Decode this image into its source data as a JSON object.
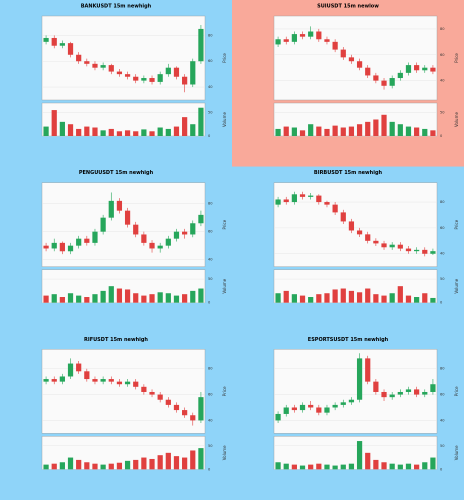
{
  "chart_data": [
    {
      "type": "candlestick",
      "title": "BANKUSDT 15m newhigh",
      "background": "#8fd4f9",
      "up_color": "#26a65b",
      "down_color": "#e0403f",
      "ylabel": "Price",
      "vlabel": "Volume",
      "open": [
        75,
        78,
        72,
        74,
        65,
        60,
        58,
        55,
        57,
        52,
        50,
        48,
        45,
        47,
        44,
        50,
        55,
        48,
        42,
        60
      ],
      "close": [
        78,
        72,
        74,
        65,
        60,
        58,
        55,
        57,
        52,
        50,
        48,
        45,
        47,
        44,
        50,
        55,
        48,
        42,
        60,
        85
      ],
      "high": [
        80,
        80,
        76,
        75,
        67,
        62,
        60,
        59,
        58,
        54,
        52,
        50,
        49,
        49,
        52,
        58,
        56,
        50,
        62,
        88
      ],
      "low": [
        73,
        70,
        70,
        63,
        58,
        56,
        53,
        53,
        50,
        48,
        46,
        43,
        43,
        42,
        42,
        48,
        46,
        36,
        40,
        58
      ],
      "volume": [
        20,
        55,
        30,
        25,
        15,
        20,
        18,
        12,
        15,
        10,
        12,
        10,
        14,
        10,
        18,
        15,
        20,
        40,
        25,
        60
      ],
      "ylim": [
        30,
        95
      ],
      "yticks": [
        40,
        60,
        80
      ],
      "vlim": [
        0,
        70
      ],
      "vticks": [
        0,
        50
      ]
    },
    {
      "type": "candlestick",
      "title": "SUIUSDT 15m newlow",
      "background": "#f9a99a",
      "up_color": "#26a65b",
      "down_color": "#e0403f",
      "ylabel": "Price",
      "vlabel": "Volume",
      "open": [
        68,
        72,
        70,
        76,
        74,
        78,
        72,
        70,
        64,
        58,
        55,
        50,
        44,
        40,
        36,
        42,
        46,
        52,
        48,
        50
      ],
      "close": [
        72,
        70,
        76,
        74,
        78,
        72,
        70,
        64,
        58,
        55,
        50,
        44,
        40,
        36,
        42,
        46,
        52,
        48,
        50,
        47
      ],
      "high": [
        74,
        74,
        78,
        78,
        82,
        80,
        74,
        72,
        66,
        60,
        57,
        52,
        46,
        42,
        44,
        48,
        54,
        54,
        52,
        52
      ],
      "low": [
        66,
        68,
        68,
        72,
        72,
        70,
        68,
        62,
        56,
        53,
        48,
        42,
        38,
        33,
        34,
        40,
        44,
        46,
        46,
        45
      ],
      "volume": [
        15,
        20,
        18,
        12,
        25,
        20,
        15,
        22,
        18,
        20,
        25,
        30,
        35,
        45,
        30,
        25,
        20,
        18,
        15,
        12
      ],
      "ylim": [
        25,
        90
      ],
      "yticks": [
        40,
        60,
        80
      ],
      "vlim": [
        0,
        70
      ],
      "vticks": [
        0,
        50
      ]
    },
    {
      "type": "candlestick",
      "title": "PENGUUSDT 15m newhigh",
      "background": "#8fd4f9",
      "up_color": "#26a65b",
      "down_color": "#e0403f",
      "ylabel": "Price",
      "vlabel": "Volume",
      "open": [
        50,
        48,
        52,
        46,
        50,
        55,
        52,
        60,
        70,
        82,
        75,
        65,
        58,
        52,
        48,
        50,
        55,
        60,
        58,
        66
      ],
      "close": [
        48,
        52,
        46,
        50,
        55,
        52,
        60,
        70,
        82,
        75,
        65,
        58,
        52,
        48,
        50,
        55,
        60,
        58,
        66,
        72
      ],
      "high": [
        52,
        55,
        53,
        52,
        57,
        57,
        62,
        72,
        88,
        84,
        77,
        67,
        60,
        54,
        52,
        57,
        62,
        62,
        68,
        75
      ],
      "low": [
        46,
        46,
        44,
        44,
        48,
        50,
        50,
        58,
        68,
        73,
        63,
        56,
        50,
        45,
        45,
        48,
        53,
        55,
        56,
        64
      ],
      "volume": [
        15,
        18,
        12,
        20,
        15,
        12,
        18,
        25,
        35,
        30,
        28,
        20,
        15,
        18,
        22,
        20,
        15,
        18,
        25,
        30
      ],
      "ylim": [
        35,
        95
      ],
      "yticks": [
        40,
        60,
        80
      ],
      "vlim": [
        0,
        70
      ],
      "vticks": [
        0,
        50
      ]
    },
    {
      "type": "candlestick",
      "title": "BIRBUSDT 15m newhigh",
      "background": "#8fd4f9",
      "up_color": "#26a65b",
      "down_color": "#e0403f",
      "ylabel": "Price",
      "vlabel": "Volume",
      "open": [
        78,
        82,
        80,
        86,
        84,
        85,
        80,
        78,
        72,
        65,
        58,
        55,
        50,
        48,
        45,
        47,
        44,
        42,
        43,
        40
      ],
      "close": [
        82,
        80,
        86,
        84,
        85,
        80,
        78,
        72,
        65,
        58,
        55,
        50,
        48,
        45,
        47,
        44,
        42,
        43,
        40,
        42
      ],
      "high": [
        84,
        84,
        88,
        88,
        87,
        86,
        81,
        80,
        74,
        67,
        60,
        57,
        52,
        50,
        49,
        49,
        46,
        45,
        45,
        44
      ],
      "low": [
        76,
        78,
        78,
        82,
        82,
        78,
        76,
        70,
        63,
        56,
        53,
        48,
        46,
        43,
        43,
        42,
        40,
        40,
        38,
        39
      ],
      "volume": [
        20,
        25,
        18,
        15,
        12,
        18,
        20,
        28,
        30,
        25,
        22,
        30,
        18,
        15,
        20,
        35,
        15,
        12,
        20,
        10
      ],
      "ylim": [
        30,
        95
      ],
      "yticks": [
        40,
        60,
        80
      ],
      "vlim": [
        0,
        70
      ],
      "vticks": [
        0,
        50
      ]
    },
    {
      "type": "candlestick",
      "title": "RIFUSDT 15m newhigh",
      "background": "#8fd4f9",
      "up_color": "#26a65b",
      "down_color": "#e0403f",
      "ylabel": "Price",
      "vlabel": "Volume",
      "open": [
        70,
        72,
        70,
        74,
        84,
        78,
        72,
        70,
        72,
        70,
        68,
        70,
        66,
        62,
        60,
        56,
        52,
        48,
        44,
        40
      ],
      "close": [
        72,
        70,
        74,
        84,
        78,
        72,
        70,
        72,
        70,
        68,
        70,
        66,
        62,
        60,
        56,
        52,
        48,
        44,
        40,
        58
      ],
      "high": [
        74,
        74,
        76,
        88,
        86,
        80,
        74,
        74,
        74,
        72,
        72,
        72,
        68,
        64,
        62,
        58,
        54,
        50,
        46,
        62
      ],
      "low": [
        68,
        68,
        68,
        72,
        76,
        70,
        68,
        68,
        68,
        66,
        66,
        64,
        60,
        58,
        54,
        50,
        46,
        42,
        36,
        38
      ],
      "volume": [
        10,
        12,
        15,
        25,
        20,
        15,
        12,
        10,
        12,
        14,
        18,
        20,
        25,
        22,
        30,
        35,
        28,
        25,
        40,
        45
      ],
      "ylim": [
        30,
        95
      ],
      "yticks": [
        40,
        60,
        80
      ],
      "vlim": [
        0,
        70
      ],
      "vticks": [
        0,
        50
      ]
    },
    {
      "type": "candlestick",
      "title": "ESPORTSUSDT 15m newhigh",
      "background": "#8fd4f9",
      "up_color": "#26a65b",
      "down_color": "#e0403f",
      "ylabel": "Price",
      "vlabel": "Volume",
      "open": [
        40,
        45,
        50,
        48,
        52,
        50,
        46,
        50,
        52,
        54,
        56,
        88,
        70,
        62,
        58,
        60,
        62,
        64,
        60,
        62
      ],
      "close": [
        45,
        50,
        48,
        52,
        50,
        46,
        50,
        52,
        54,
        56,
        88,
        70,
        62,
        58,
        60,
        62,
        64,
        60,
        62,
        68
      ],
      "high": [
        47,
        52,
        52,
        54,
        55,
        52,
        52,
        54,
        56,
        58,
        92,
        90,
        72,
        64,
        62,
        64,
        66,
        66,
        64,
        72
      ],
      "low": [
        38,
        43,
        46,
        46,
        48,
        44,
        44,
        48,
        50,
        52,
        54,
        68,
        60,
        55,
        56,
        58,
        60,
        58,
        58,
        60
      ],
      "volume": [
        15,
        12,
        10,
        8,
        10,
        12,
        10,
        8,
        10,
        12,
        60,
        35,
        20,
        15,
        12,
        10,
        12,
        10,
        15,
        25
      ],
      "ylim": [
        30,
        95
      ],
      "yticks": [
        40,
        60,
        80
      ],
      "vlim": [
        0,
        70
      ],
      "vticks": [
        0,
        50
      ]
    }
  ]
}
